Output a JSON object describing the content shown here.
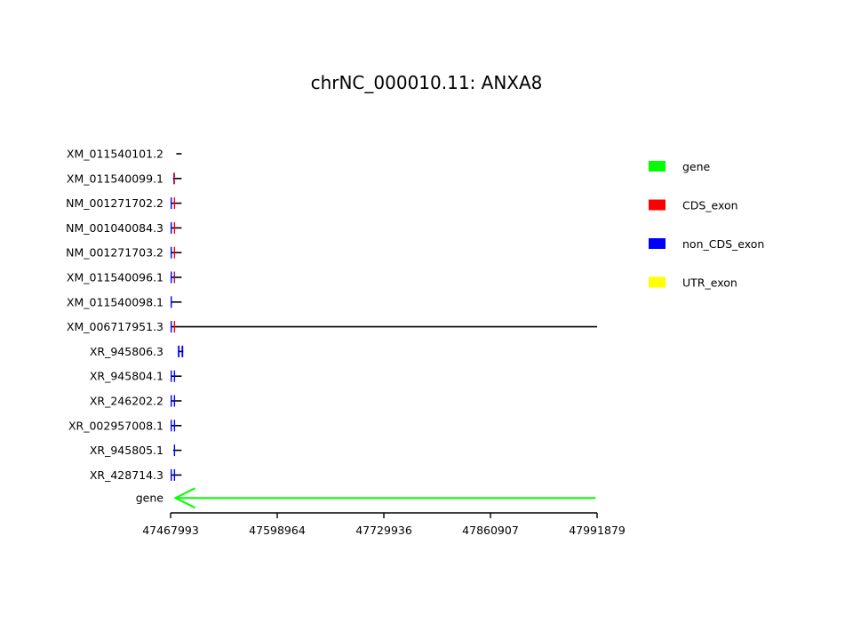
{
  "chart_data": {
    "type": "gene_structure",
    "title": "chrNC_000010.11: ANXA8",
    "xlim": [
      47467993,
      47991879
    ],
    "xticks": [
      47467993,
      47598964,
      47729936,
      47860907,
      47991879
    ],
    "xtick_labels": [
      "47467993",
      "47598964",
      "47729936",
      "47860907",
      "47991879"
    ],
    "grid": false,
    "legend_position": "right",
    "legend": [
      {
        "label": "gene",
        "color": "#00ff00"
      },
      {
        "label": "CDS_exon",
        "color": "#ff0000"
      },
      {
        "label": "non_CDS_exon",
        "color": "#0000ff"
      },
      {
        "label": "UTR_exon",
        "color": "#ffff00"
      }
    ],
    "gene": {
      "label": "gene",
      "start": 47474000,
      "end": 47990000,
      "strand": "-",
      "color": "#00ff00"
    },
    "transcripts": [
      {
        "name": "XM_011540101.2",
        "start": 47475000,
        "end": 47481500,
        "exons": []
      },
      {
        "name": "XM_011540099.1",
        "start": 47471000,
        "end": 47481500,
        "exons": [
          {
            "start": 47471500,
            "end": 47473500,
            "type": "mixed"
          }
        ]
      },
      {
        "name": "NM_001271702.2",
        "start": 47467993,
        "end": 47481500,
        "exons": [
          {
            "start": 47467993,
            "end": 47469500,
            "type": "non_CDS"
          },
          {
            "start": 47472000,
            "end": 47473500,
            "type": "CDS"
          }
        ]
      },
      {
        "name": "NM_001040084.3",
        "start": 47467993,
        "end": 47481500,
        "exons": [
          {
            "start": 47467993,
            "end": 47469500,
            "type": "non_CDS"
          },
          {
            "start": 47472000,
            "end": 47473500,
            "type": "CDS"
          }
        ]
      },
      {
        "name": "NM_001271703.2",
        "start": 47467993,
        "end": 47481500,
        "exons": [
          {
            "start": 47467993,
            "end": 47469500,
            "type": "non_CDS"
          },
          {
            "start": 47472000,
            "end": 47473500,
            "type": "CDS"
          }
        ]
      },
      {
        "name": "XM_011540096.1",
        "start": 47467993,
        "end": 47481500,
        "exons": [
          {
            "start": 47467993,
            "end": 47469500,
            "type": "non_CDS"
          },
          {
            "start": 47472000,
            "end": 47473500,
            "type": "mixed"
          }
        ]
      },
      {
        "name": "XM_011540098.1",
        "start": 47467993,
        "end": 47481500,
        "exons": [
          {
            "start": 47467993,
            "end": 47469500,
            "type": "non_CDS"
          }
        ]
      },
      {
        "name": "XM_006717951.3",
        "start": 47467993,
        "end": 47991879,
        "exons": [
          {
            "start": 47467993,
            "end": 47469500,
            "type": "non_CDS"
          },
          {
            "start": 47472000,
            "end": 47473500,
            "type": "CDS"
          }
        ]
      },
      {
        "name": "XR_945806.3",
        "start": 47477000,
        "end": 47483500,
        "exons": [
          {
            "start": 47477000,
            "end": 47479000,
            "type": "non_CDS"
          },
          {
            "start": 47481500,
            "end": 47483500,
            "type": "non_CDS"
          }
        ]
      },
      {
        "name": "XR_945804.1",
        "start": 47467993,
        "end": 47481500,
        "exons": [
          {
            "start": 47467993,
            "end": 47469500,
            "type": "non_CDS"
          },
          {
            "start": 47472000,
            "end": 47473500,
            "type": "non_CDS"
          }
        ]
      },
      {
        "name": "XR_246202.2",
        "start": 47467993,
        "end": 47481500,
        "exons": [
          {
            "start": 47467993,
            "end": 47469500,
            "type": "non_CDS"
          },
          {
            "start": 47472000,
            "end": 47473500,
            "type": "non_CDS"
          }
        ]
      },
      {
        "name": "XR_002957008.1",
        "start": 47467993,
        "end": 47481500,
        "exons": [
          {
            "start": 47467993,
            "end": 47469500,
            "type": "non_CDS"
          },
          {
            "start": 47472000,
            "end": 47473500,
            "type": "non_CDS"
          }
        ]
      },
      {
        "name": "XR_945805.1",
        "start": 47471000,
        "end": 47481500,
        "exons": [
          {
            "start": 47472000,
            "end": 47473500,
            "type": "non_CDS"
          }
        ]
      },
      {
        "name": "XR_428714.3",
        "start": 47467993,
        "end": 47481500,
        "exons": [
          {
            "start": 47467993,
            "end": 47469500,
            "type": "non_CDS"
          },
          {
            "start": 47472000,
            "end": 47473500,
            "type": "non_CDS"
          }
        ]
      }
    ]
  }
}
